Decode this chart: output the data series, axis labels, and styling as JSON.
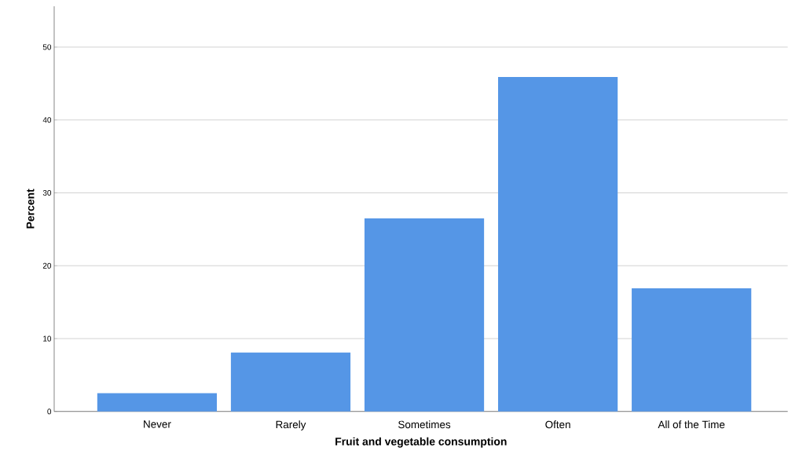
{
  "chart_data": {
    "type": "bar",
    "xlabel": "Fruit and vegetable consumption",
    "ylabel": "Percent",
    "categories": [
      "Never",
      "Rarely",
      "Sometimes",
      "Often",
      "All of the Time"
    ],
    "values": [
      2.5,
      8.1,
      26.5,
      45.9,
      16.9
    ],
    "color": "#5596e6",
    "ylim": [
      0,
      55.6
    ],
    "yticks": [
      0,
      10,
      20,
      30,
      40,
      50
    ],
    "grid": "y"
  }
}
